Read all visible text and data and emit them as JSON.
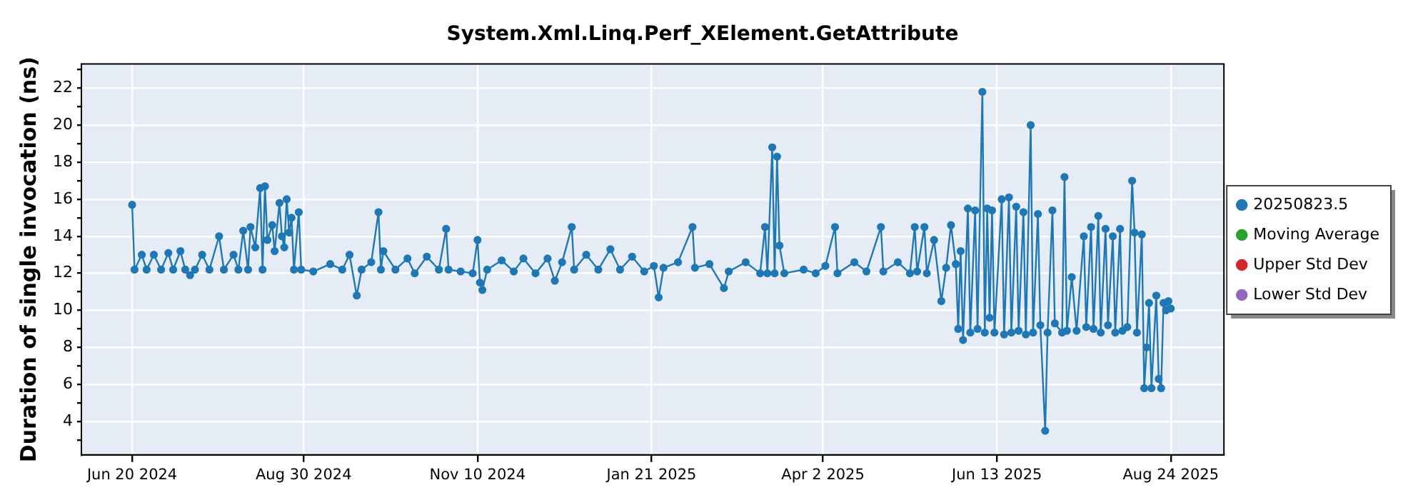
{
  "chart_data": {
    "type": "line",
    "title": "System.Xml.Linq.Perf_XElement.GetAttribute",
    "ylabel": "Duration of single invocation (ns)",
    "xlim": [
      "2024-05-30",
      "2025-09-15"
    ],
    "xticks": [
      {
        "value": "2024-06-20",
        "label": "Jun 20 2024"
      },
      {
        "value": "2024-08-30",
        "label": "Aug 30 2024"
      },
      {
        "value": "2024-11-10",
        "label": "Nov 10 2024"
      },
      {
        "value": "2025-01-21",
        "label": "Jan 21 2025"
      },
      {
        "value": "2025-04-02",
        "label": "Apr 2 2025"
      },
      {
        "value": "2025-06-13",
        "label": "Jun 13 2025"
      },
      {
        "value": "2025-08-24",
        "label": "Aug 24 2025"
      }
    ],
    "ylim": [
      2.2,
      23.3
    ],
    "yticks": [
      {
        "value": 3,
        "label": null
      },
      4,
      {
        "value": 5,
        "label": null
      },
      6,
      {
        "value": 7,
        "label": null
      },
      8,
      {
        "value": 9,
        "label": null
      },
      10,
      {
        "value": 11,
        "label": null
      },
      12,
      {
        "value": 13,
        "label": null
      },
      14,
      {
        "value": 15,
        "label": null
      },
      16,
      {
        "value": 17,
        "label": null
      },
      18,
      {
        "value": 19,
        "label": null
      },
      20,
      {
        "value": 21,
        "label": null
      },
      22,
      {
        "value": 23,
        "label": null
      }
    ],
    "grid": true,
    "legend": "right",
    "marker": "circle",
    "line_style": "solid",
    "series": [
      {
        "name": "20250823.5",
        "color": "#1f77b4",
        "x": [
          "2024-06-20",
          "2024-06-21",
          "2024-06-24",
          "2024-06-26",
          "2024-06-29",
          "2024-07-02",
          "2024-07-05",
          "2024-07-07",
          "2024-07-10",
          "2024-07-12",
          "2024-07-14",
          "2024-07-16",
          "2024-07-19",
          "2024-07-22",
          "2024-07-26",
          "2024-07-28",
          "2024-08-01",
          "2024-08-03",
          "2024-08-05",
          "2024-08-07",
          "2024-08-08",
          "2024-08-10",
          "2024-08-12",
          "2024-08-13",
          "2024-08-14",
          "2024-08-15",
          "2024-08-17",
          "2024-08-18",
          "2024-08-20",
          "2024-08-21",
          "2024-08-22",
          "2024-08-23",
          "2024-08-24",
          "2024-08-25",
          "2024-08-26",
          "2024-08-28",
          "2024-08-29",
          "2024-09-03",
          "2024-09-10",
          "2024-09-15",
          "2024-09-18",
          "2024-09-21",
          "2024-09-23",
          "2024-09-27",
          "2024-09-30",
          "2024-10-01",
          "2024-10-02",
          "2024-10-07",
          "2024-10-12",
          "2024-10-15",
          "2024-10-20",
          "2024-10-25",
          "2024-10-28",
          "2024-10-29",
          "2024-11-03",
          "2024-11-08",
          "2024-11-10",
          "2024-11-11",
          "2024-11-12",
          "2024-11-14",
          "2024-11-20",
          "2024-11-25",
          "2024-11-29",
          "2024-12-04",
          "2024-12-09",
          "2024-12-12",
          "2024-12-15",
          "2024-12-19",
          "2024-12-20",
          "2024-12-25",
          "2024-12-30",
          "2025-01-04",
          "2025-01-08",
          "2025-01-13",
          "2025-01-18",
          "2025-01-22",
          "2025-01-24",
          "2025-01-26",
          "2025-02-01",
          "2025-02-07",
          "2025-02-08",
          "2025-02-14",
          "2025-02-20",
          "2025-02-22",
          "2025-03-01",
          "2025-03-07",
          "2025-03-09",
          "2025-03-10",
          "2025-03-12",
          "2025-03-13",
          "2025-03-14",
          "2025-03-15",
          "2025-03-17",
          "2025-03-25",
          "2025-03-30",
          "2025-04-03",
          "2025-04-07",
          "2025-04-08",
          "2025-04-15",
          "2025-04-20",
          "2025-04-26",
          "2025-04-27",
          "2025-05-03",
          "2025-05-08",
          "2025-05-10",
          "2025-05-11",
          "2025-05-14",
          "2025-05-15",
          "2025-05-18",
          "2025-05-21",
          "2025-05-23",
          "2025-05-25",
          "2025-05-27",
          "2025-05-28",
          "2025-05-29",
          "2025-05-30",
          "2025-06-01",
          "2025-06-02",
          "2025-06-04",
          "2025-06-05",
          "2025-06-07",
          "2025-06-08",
          "2025-06-09",
          "2025-06-10",
          "2025-06-11",
          "2025-06-12",
          "2025-06-15",
          "2025-06-16",
          "2025-06-18",
          "2025-06-19",
          "2025-06-21",
          "2025-06-22",
          "2025-06-24",
          "2025-06-25",
          "2025-06-27",
          "2025-06-28",
          "2025-06-30",
          "2025-07-01",
          "2025-07-03",
          "2025-07-04",
          "2025-07-06",
          "2025-07-07",
          "2025-07-10",
          "2025-07-11",
          "2025-07-12",
          "2025-07-14",
          "2025-07-16",
          "2025-07-19",
          "2025-07-20",
          "2025-07-22",
          "2025-07-23",
          "2025-07-25",
          "2025-07-26",
          "2025-07-28",
          "2025-07-29",
          "2025-07-31",
          "2025-08-01",
          "2025-08-03",
          "2025-08-04",
          "2025-08-06",
          "2025-08-08",
          "2025-08-09",
          "2025-08-10",
          "2025-08-12",
          "2025-08-13",
          "2025-08-14",
          "2025-08-15",
          "2025-08-16",
          "2025-08-18",
          "2025-08-19",
          "2025-08-20",
          "2025-08-21",
          "2025-08-22",
          "2025-08-23",
          "2025-08-24"
        ],
        "values": [
          15.7,
          12.2,
          13.0,
          12.2,
          13.0,
          12.2,
          13.1,
          12.2,
          13.2,
          12.2,
          11.9,
          12.2,
          13.0,
          12.2,
          14.0,
          12.2,
          13.0,
          12.2,
          14.3,
          12.2,
          14.5,
          13.4,
          16.6,
          12.2,
          16.7,
          13.8,
          14.6,
          13.2,
          15.8,
          14.0,
          13.4,
          16.0,
          14.2,
          15.0,
          12.2,
          15.3,
          12.2,
          12.1,
          12.5,
          12.2,
          13.0,
          10.8,
          12.2,
          12.6,
          15.3,
          12.2,
          13.2,
          12.2,
          12.8,
          12.0,
          12.9,
          12.2,
          14.4,
          12.2,
          12.1,
          12.0,
          13.8,
          11.5,
          11.1,
          12.2,
          12.7,
          12.1,
          12.8,
          12.0,
          12.8,
          11.6,
          12.6,
          14.5,
          12.2,
          13.0,
          12.2,
          13.3,
          12.2,
          12.9,
          12.1,
          12.4,
          10.7,
          12.3,
          12.6,
          14.5,
          12.3,
          12.5,
          11.2,
          12.1,
          12.6,
          12.0,
          14.5,
          12.0,
          18.8,
          12.0,
          18.3,
          13.5,
          12.0,
          12.2,
          12.0,
          12.4,
          14.5,
          12.0,
          12.6,
          12.1,
          14.5,
          12.1,
          12.6,
          12.0,
          14.5,
          12.1,
          14.5,
          12.0,
          13.8,
          10.5,
          12.3,
          14.6,
          12.5,
          9.0,
          13.2,
          8.4,
          15.5,
          8.8,
          15.4,
          9.0,
          21.8,
          8.8,
          15.5,
          9.6,
          15.4,
          8.8,
          16.0,
          8.7,
          16.1,
          8.8,
          15.6,
          8.9,
          15.3,
          8.7,
          20.0,
          8.8,
          15.2,
          9.2,
          3.5,
          8.8,
          15.4,
          9.3,
          8.8,
          17.2,
          8.9,
          11.8,
          8.9,
          14.0,
          9.1,
          14.5,
          9.0,
          15.1,
          8.8,
          14.4,
          9.2,
          14.0,
          8.8,
          14.4,
          8.9,
          9.1,
          17.0,
          14.2,
          8.8,
          14.1,
          5.8,
          8.0,
          10.4,
          5.8,
          10.8,
          6.3,
          5.8,
          10.4,
          10.0,
          10.5,
          10.1
        ]
      },
      {
        "name": "Moving Average",
        "color": "#2ca02c"
      },
      {
        "name": "Upper Std Dev",
        "color": "#d62728"
      },
      {
        "name": "Lower Std Dev",
        "color": "#9467bd"
      }
    ]
  }
}
